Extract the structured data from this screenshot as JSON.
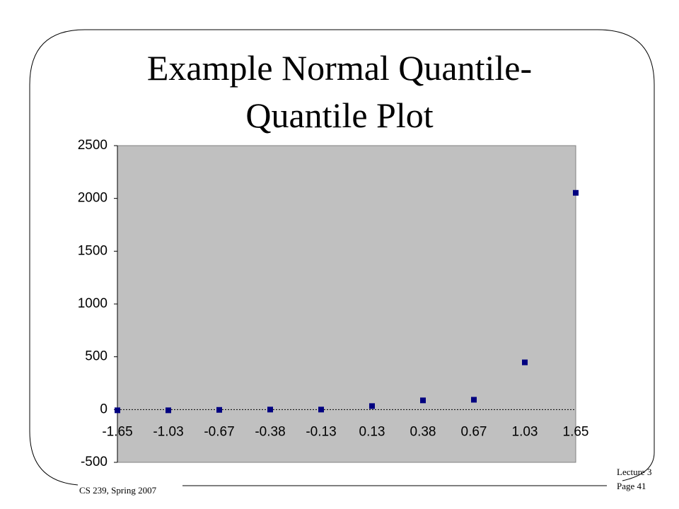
{
  "slide": {
    "title": [
      "Example Normal Quantile-",
      "Quantile Plot"
    ],
    "footer_left": "CS 239, Spring 2007",
    "footer_right": [
      "Lecture 3",
      "Page 41"
    ]
  },
  "chart_data": {
    "type": "scatter",
    "categories": [
      "-1.65",
      "-1.03",
      "-0.67",
      "-0.38",
      "-0.13",
      "0.13",
      "0.38",
      "0.67",
      "1.03",
      "1.65"
    ],
    "values": [
      -7,
      -7,
      -3,
      0,
      0,
      33,
      87,
      93,
      447,
      2053
    ],
    "color": "#000080",
    "ylim": [
      -500,
      2500
    ],
    "yticks": [
      -500,
      0,
      500,
      1000,
      1500,
      2000,
      2500
    ],
    "plot_background": "#c0c0c0"
  }
}
